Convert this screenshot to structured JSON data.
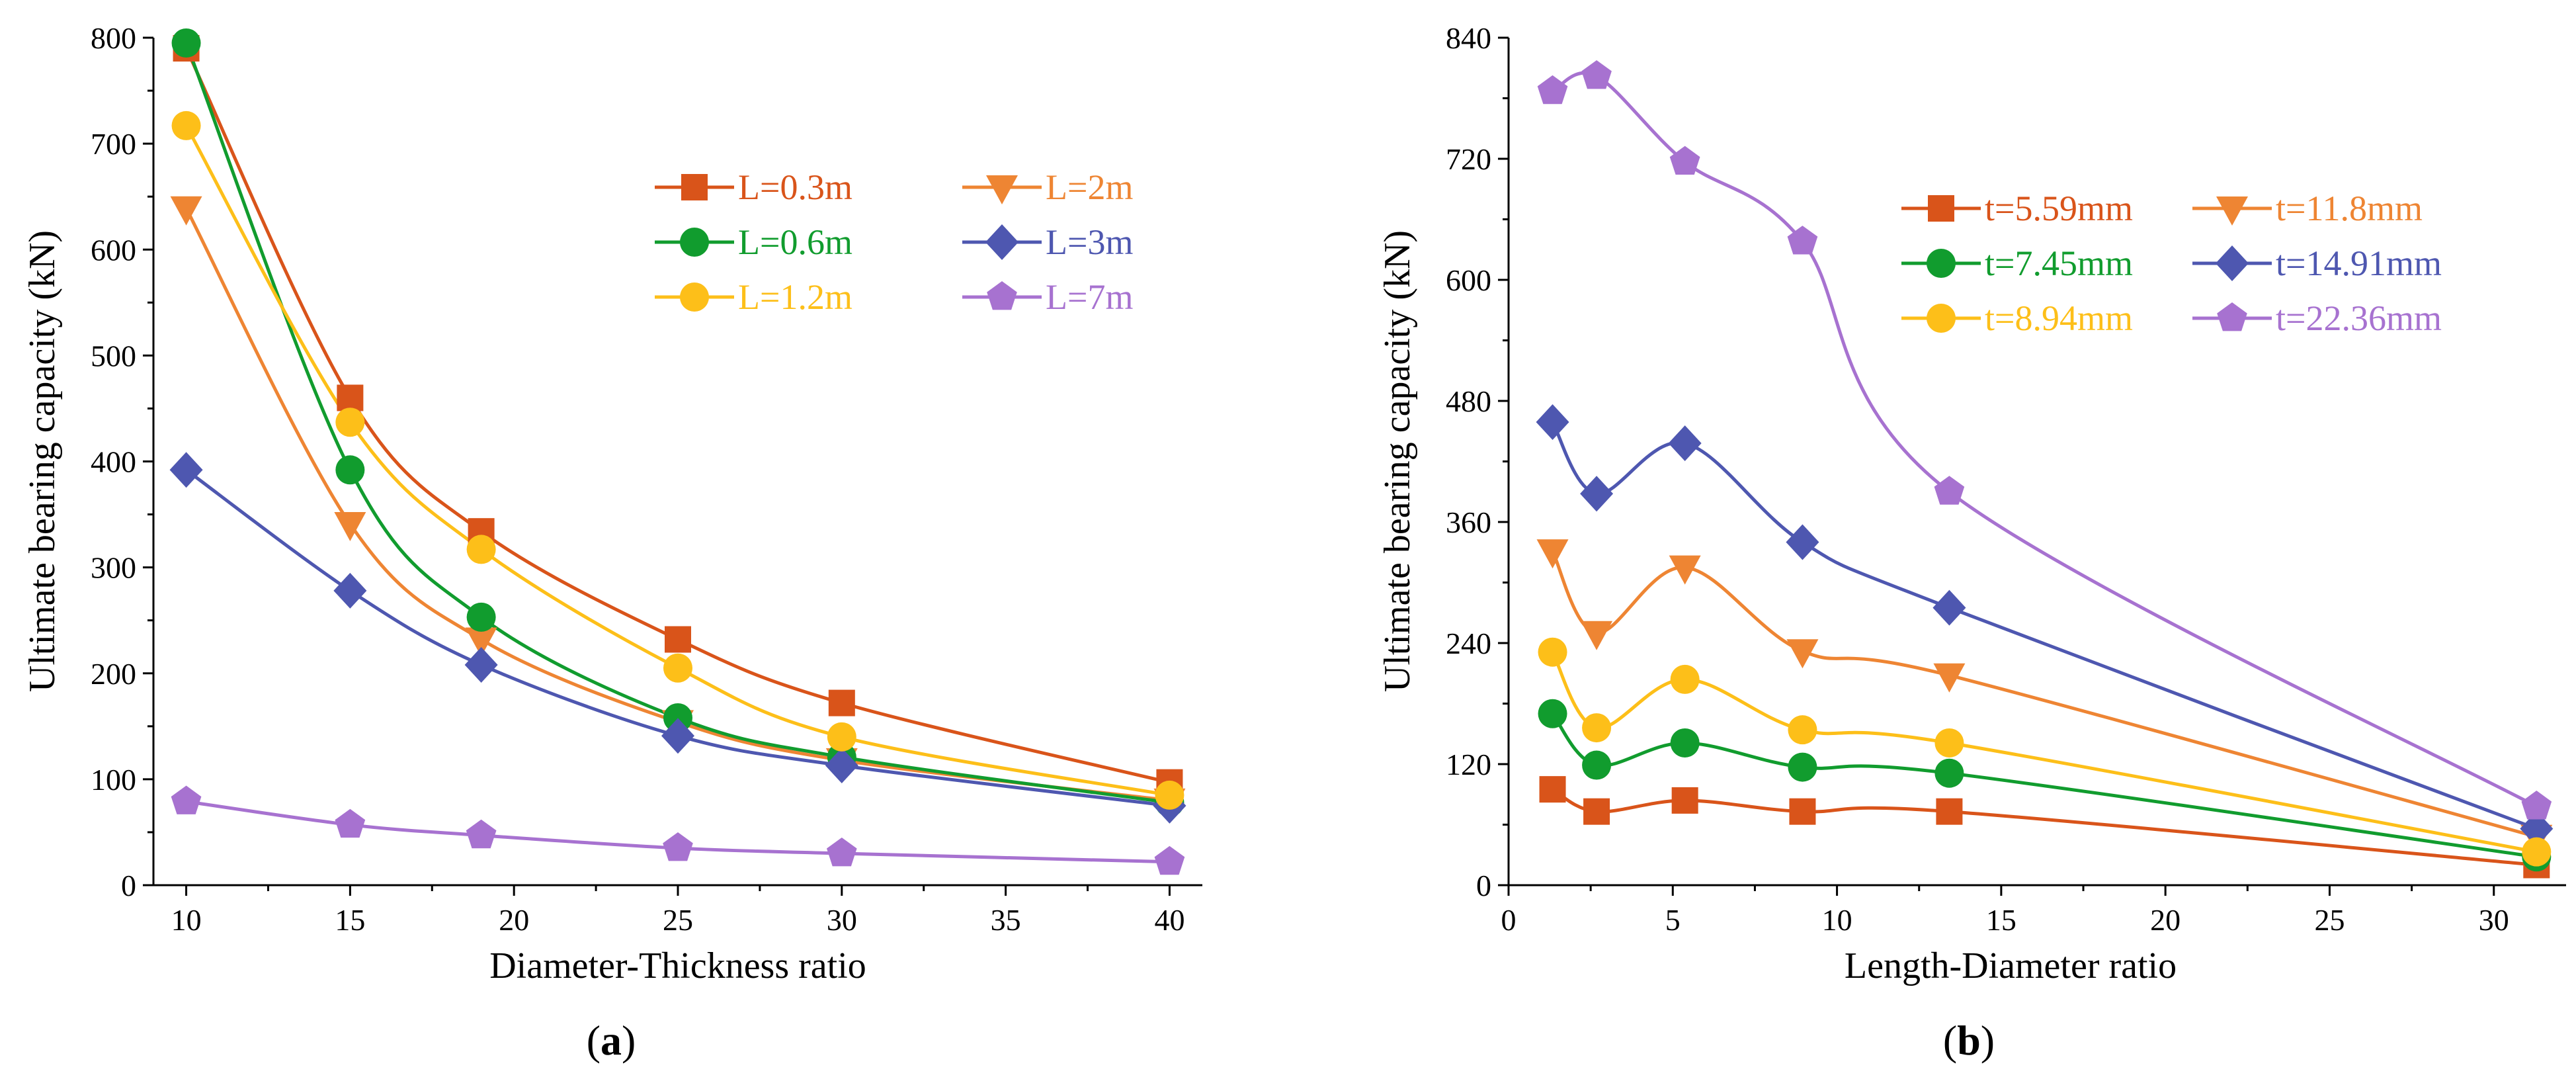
{
  "chart_data": [
    {
      "id": "a",
      "type": "line",
      "panel_label": "a",
      "xlabel": "Diameter-Thickness ratio",
      "ylabel": "Ultimate bearing capacity (kN)",
      "xlim": [
        9,
        41
      ],
      "ylim": [
        0,
        800
      ],
      "xticks": [
        10,
        15,
        20,
        25,
        30,
        35,
        40
      ],
      "yticks": [
        0,
        100,
        200,
        300,
        400,
        500,
        600,
        700,
        800
      ],
      "x": [
        10,
        15,
        19,
        25,
        30,
        40
      ],
      "legend_position": "top-right",
      "series": [
        {
          "name": "L=0.3m",
          "color": "#D9541A",
          "marker": "square",
          "values": [
            790,
            460,
            334,
            232,
            172,
            97
          ]
        },
        {
          "name": "L=2m",
          "color": "#EE8533",
          "marker": "triangle-down",
          "values": [
            639,
            341,
            232,
            154,
            118,
            80
          ]
        },
        {
          "name": "L=0.6m",
          "color": "#119C2E",
          "marker": "circle",
          "values": [
            795,
            392,
            253,
            158,
            121,
            78
          ]
        },
        {
          "name": "L=3m",
          "color": "#4E57B0",
          "marker": "diamond",
          "values": [
            392,
            278,
            208,
            141,
            113,
            75
          ]
        },
        {
          "name": "L=1.2m",
          "color": "#FDBF19",
          "marker": "circle",
          "values": [
            717,
            437,
            317,
            205,
            140,
            85
          ]
        },
        {
          "name": "L=7m",
          "color": "#A772D0",
          "marker": "pentagon",
          "values": [
            79,
            57,
            47,
            35,
            30,
            22
          ]
        }
      ]
    },
    {
      "id": "b",
      "type": "line",
      "panel_label": "b",
      "xlabel": "Length-Diameter ratio",
      "ylabel": "Ultimate bearing capacity (kN)",
      "xlim": [
        0,
        32.2
      ],
      "ylim": [
        0,
        840
      ],
      "xticks": [
        0,
        5,
        10,
        15,
        20,
        25,
        30
      ],
      "yticks": [
        0,
        120,
        240,
        360,
        480,
        600,
        720,
        840
      ],
      "x": [
        1.34,
        2.68,
        5.37,
        8.95,
        13.42,
        31.3
      ],
      "legend_position": "top-right",
      "series": [
        {
          "name": "t=5.59mm",
          "color": "#D9541A",
          "marker": "square",
          "values": [
            95,
            73,
            84,
            73,
            73,
            20
          ]
        },
        {
          "name": "t=11.8mm",
          "color": "#EE8533",
          "marker": "triangle-down",
          "values": [
            331,
            250,
            315,
            232,
            208,
            48
          ]
        },
        {
          "name": "t=7.45mm",
          "color": "#119C2E",
          "marker": "circle",
          "values": [
            170,
            119,
            141,
            117,
            111,
            28
          ]
        },
        {
          "name": "t=14.91mm",
          "color": "#4E57B0",
          "marker": "diamond",
          "values": [
            459,
            388,
            438,
            340,
            275,
            56
          ]
        },
        {
          "name": "t=8.94mm",
          "color": "#FDBF19",
          "marker": "circle",
          "values": [
            231,
            156,
            204,
            154,
            141,
            33
          ]
        },
        {
          "name": "t=22.36mm",
          "color": "#A772D0",
          "marker": "pentagon",
          "values": [
            787,
            802,
            717,
            638,
            390,
            78
          ]
        }
      ]
    }
  ]
}
